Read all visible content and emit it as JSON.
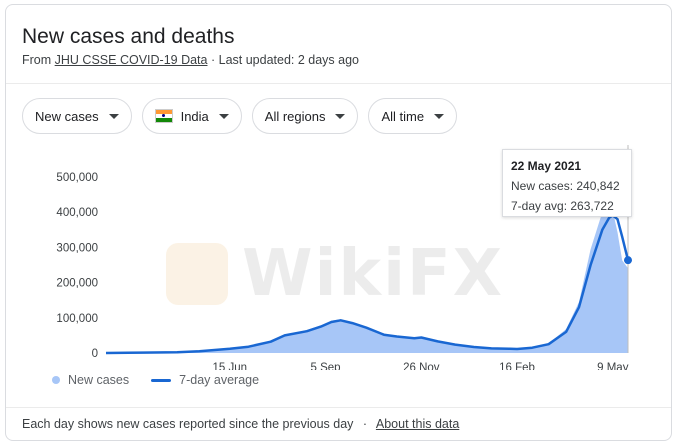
{
  "header": {
    "title": "New cases and deaths",
    "from_label": "From",
    "source_link": "JHU CSSE COVID-19 Data",
    "separator": "·",
    "last_updated": "Last updated: 2 days ago"
  },
  "filters": {
    "metric": "New cases",
    "country": "India",
    "region": "All regions",
    "time": "All time"
  },
  "tooltip": {
    "date": "22 May 2021",
    "new_cases": "New cases: 240,842",
    "avg": "7-day avg: 263,722"
  },
  "legend": {
    "new_cases": "New cases",
    "avg": "7-day average"
  },
  "footer": {
    "note": "Each day shows new cases reported since the previous day",
    "separator": "·",
    "about": "About this data"
  },
  "watermark": "WikiFX",
  "colors": {
    "area": "#a7c6f7",
    "line": "#1967d2",
    "flag_saffron": "#ff9933",
    "flag_green": "#138808"
  },
  "chart_data": {
    "type": "area",
    "ylim": [
      0,
      500000
    ],
    "y_ticks": [
      "0",
      "100,000",
      "200,000",
      "300,000",
      "400,000",
      "500,000"
    ],
    "x_ticks": [
      "15 Jun",
      "5 Sep",
      "26 Nov",
      "16 Feb",
      "9 May"
    ],
    "series": [
      {
        "name": "7-day average",
        "points": [
          [
            "2020-03-01",
            0
          ],
          [
            "2020-04-01",
            1000
          ],
          [
            "2020-05-01",
            2000
          ],
          [
            "2020-05-20",
            5000
          ],
          [
            "2020-06-15",
            12000
          ],
          [
            "2020-07-01",
            18000
          ],
          [
            "2020-07-20",
            32000
          ],
          [
            "2020-08-01",
            50000
          ],
          [
            "2020-08-20",
            62000
          ],
          [
            "2020-09-01",
            75000
          ],
          [
            "2020-09-10",
            88000
          ],
          [
            "2020-09-18",
            93000
          ],
          [
            "2020-09-28",
            85000
          ],
          [
            "2020-10-10",
            72000
          ],
          [
            "2020-10-25",
            52000
          ],
          [
            "2020-11-05",
            47000
          ],
          [
            "2020-11-20",
            42000
          ],
          [
            "2020-11-26",
            44000
          ],
          [
            "2020-12-10",
            33000
          ],
          [
            "2020-12-25",
            24000
          ],
          [
            "2021-01-10",
            17000
          ],
          [
            "2021-01-25",
            13000
          ],
          [
            "2021-02-10",
            12000
          ],
          [
            "2021-02-16",
            11500
          ],
          [
            "2021-03-01",
            15000
          ],
          [
            "2021-03-15",
            25000
          ],
          [
            "2021-03-30",
            60000
          ],
          [
            "2021-04-10",
            130000
          ],
          [
            "2021-04-20",
            250000
          ],
          [
            "2021-04-30",
            350000
          ],
          [
            "2021-05-06",
            385000
          ],
          [
            "2021-05-09",
            391000
          ],
          [
            "2021-05-13",
            380000
          ],
          [
            "2021-05-17",
            330000
          ],
          [
            "2021-05-22",
            263722
          ]
        ]
      },
      {
        "name": "New cases",
        "points": [
          [
            "2020-03-01",
            0
          ],
          [
            "2020-04-01",
            1200
          ],
          [
            "2020-05-01",
            2500
          ],
          [
            "2020-05-20",
            5500
          ],
          [
            "2020-06-15",
            11000
          ],
          [
            "2020-07-01",
            19000
          ],
          [
            "2020-07-20",
            35000
          ],
          [
            "2020-08-01",
            52000
          ],
          [
            "2020-08-20",
            65000
          ],
          [
            "2020-09-01",
            79000
          ],
          [
            "2020-09-10",
            92000
          ],
          [
            "2020-09-18",
            96000
          ],
          [
            "2020-09-28",
            82000
          ],
          [
            "2020-10-10",
            70000
          ],
          [
            "2020-10-25",
            50000
          ],
          [
            "2020-11-05",
            48000
          ],
          [
            "2020-11-20",
            43000
          ],
          [
            "2020-11-26",
            45000
          ],
          [
            "2020-12-10",
            31000
          ],
          [
            "2020-12-25",
            23000
          ],
          [
            "2021-01-10",
            18000
          ],
          [
            "2021-01-25",
            12500
          ],
          [
            "2021-02-10",
            11000
          ],
          [
            "2021-02-16",
            11700
          ],
          [
            "2021-03-01",
            16000
          ],
          [
            "2021-03-15",
            27000
          ],
          [
            "2021-03-30",
            68000
          ],
          [
            "2021-04-10",
            145000
          ],
          [
            "2021-04-20",
            295000
          ],
          [
            "2021-04-30",
            400000
          ],
          [
            "2021-05-06",
            414000
          ],
          [
            "2021-05-09",
            403000
          ],
          [
            "2021-05-13",
            343000
          ],
          [
            "2021-05-17",
            263000
          ],
          [
            "2021-05-22",
            240842
          ]
        ]
      }
    ],
    "highlight": {
      "x": "2021-05-22",
      "y": 263722
    }
  }
}
